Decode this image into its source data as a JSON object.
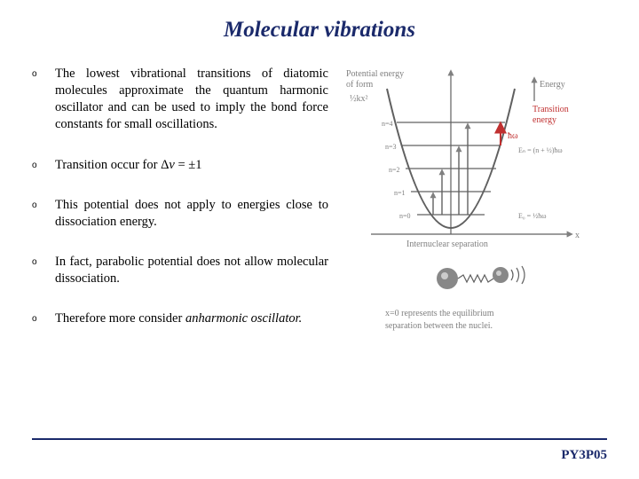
{
  "colors": {
    "title": "#1b2a6b",
    "rule": "#1b2a6b",
    "footer": "#1b2a6b",
    "diagram_grey": "#808080",
    "diagram_red": "#c03030",
    "background": "#ffffff"
  },
  "title": "Molecular vibrations",
  "bullets": [
    {
      "html": "The lowest vibrational transitions of diatomic molecules approximate the quantum harmonic oscillator and can be used to imply the bond force constants for small oscillations."
    },
    {
      "html": "Transition occur for Δ<span class=\"italic\">v</span> = ±1"
    },
    {
      "html": "This potential does not apply to energies close to dissociation energy."
    },
    {
      "html": "In fact, parabolic potential does not allow molecular dissociation."
    },
    {
      "html": "Therefore more consider <span class=\"italic\">anharmonic oscillator.</span>"
    }
  ],
  "diagram": {
    "labels": {
      "potential1": "Potential energy",
      "potential2": "of form",
      "kx2": "½kx²",
      "energy": "Energy",
      "transition1": "Transition",
      "transition2": "energy",
      "hbar_omega": "ħω",
      "n0": "n=0",
      "n1": "n=1",
      "n2": "n=2",
      "n3": "n=3",
      "n4": "n=4",
      "E0": "E₀ = ½ħω",
      "En": "Eₙ = (n + ½)ħω",
      "xaxis": "Internuclear separation",
      "xarrow": "x",
      "caption1": "x=0 represents the equilibrium",
      "caption2": "separation between the nuclei."
    }
  },
  "footer": "PY3P05"
}
